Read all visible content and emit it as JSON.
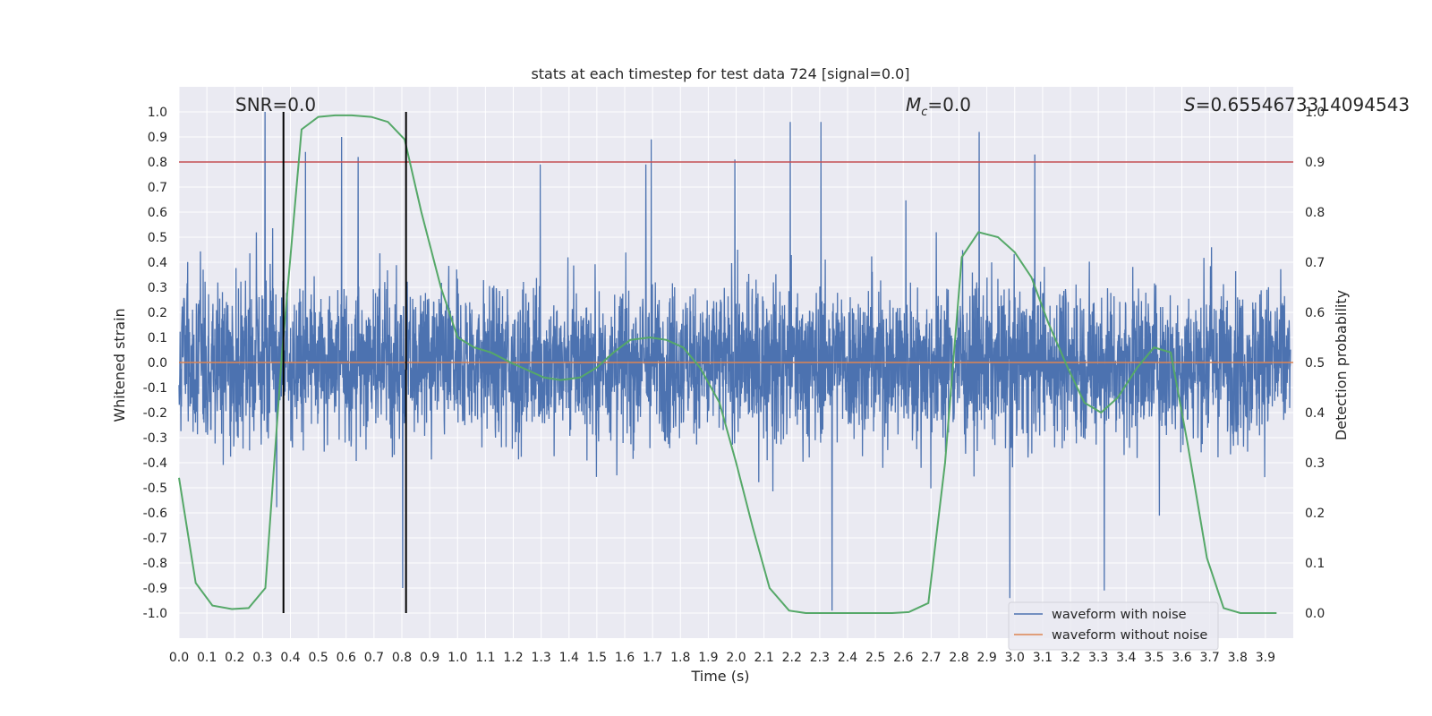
{
  "chart_data": {
    "type": "line",
    "title": "stats at each timestep for test data 724 [signal=0.0]",
    "xlabel": "Time (s)",
    "ylabel": "Whitened strain",
    "y2label": "Detection probability",
    "xlim": [
      0.0,
      4.0
    ],
    "ylim": [
      -1.1,
      1.1
    ],
    "y2lim": [
      -0.05,
      1.05
    ],
    "grid": true,
    "x_ticks": [
      "0.0",
      "0.1",
      "0.2",
      "0.3",
      "0.4",
      "0.5",
      "0.6",
      "0.7",
      "0.8",
      "0.9",
      "1.0",
      "1.1",
      "1.2",
      "1.3",
      "1.4",
      "1.5",
      "1.6",
      "1.7",
      "1.8",
      "1.9",
      "2.0",
      "2.1",
      "2.2",
      "2.3",
      "2.4",
      "2.5",
      "2.6",
      "2.7",
      "2.8",
      "2.9",
      "3.0",
      "3.1",
      "3.2",
      "3.3",
      "3.4",
      "3.5",
      "3.6",
      "3.7",
      "3.8",
      "3.9"
    ],
    "y_ticks": [
      "1.0",
      "0.9",
      "0.8",
      "0.7",
      "0.6",
      "0.5",
      "0.4",
      "0.3",
      "0.2",
      "0.1",
      "0.0",
      "-0.1",
      "-0.2",
      "-0.3",
      "-0.4",
      "-0.5",
      "-0.6",
      "-0.7",
      "-0.8",
      "-0.9",
      "-1.0"
    ],
    "y2_ticks": [
      "1.0",
      "0.9",
      "0.8",
      "0.7",
      "0.6",
      "0.5",
      "0.4",
      "0.3",
      "0.2",
      "0.1",
      "0.0"
    ],
    "annotations": {
      "snr": "SNR=0.0",
      "mc_symbol": "M",
      "mc_sub": "c",
      "mc_value": "=0.0",
      "s_symbol": "S",
      "s_value": "=0.6554673314094543"
    },
    "threshold": {
      "axis": "y2",
      "value": 0.9,
      "color": "#c44e52"
    },
    "vertical_markers": [
      0.375,
      0.815
    ],
    "marker_range_y2": [
      0.0,
      1.0
    ],
    "series": [
      {
        "name": "waveform with noise",
        "axis": "y",
        "color": "#4c72b0",
        "kind": "noise",
        "amplitude_typical": 0.35,
        "amplitude_max": 1.0,
        "peaks": [
          [
            0.31,
            1.0
          ],
          [
            0.455,
            0.84
          ],
          [
            0.585,
            0.9
          ],
          [
            0.645,
            0.82
          ],
          [
            1.3,
            0.79
          ],
          [
            1.68,
            0.79
          ],
          [
            1.7,
            0.89
          ],
          [
            2.0,
            0.81
          ],
          [
            2.2,
            0.96
          ],
          [
            2.31,
            0.96
          ],
          [
            2.88,
            0.92
          ],
          [
            3.08,
            0.83
          ],
          [
            0.805,
            -0.9
          ],
          [
            2.35,
            -0.99
          ],
          [
            2.99,
            -0.94
          ],
          [
            3.33,
            -0.91
          ]
        ]
      },
      {
        "name": "waveform without noise",
        "axis": "y",
        "color": "#dd8452",
        "values_constant": 0.0
      },
      {
        "name": "detection probability",
        "axis": "y2",
        "color": "#55a868",
        "x": [
          0.0,
          0.06,
          0.12,
          0.19,
          0.25,
          0.31,
          0.37,
          0.44,
          0.5,
          0.56,
          0.62,
          0.69,
          0.75,
          0.81,
          0.87,
          0.94,
          1.0,
          1.06,
          1.12,
          1.19,
          1.25,
          1.31,
          1.37,
          1.44,
          1.5,
          1.56,
          1.62,
          1.69,
          1.75,
          1.81,
          1.87,
          1.94,
          2.0,
          2.06,
          2.12,
          2.19,
          2.25,
          2.31,
          2.37,
          2.44,
          2.5,
          2.56,
          2.62,
          2.69,
          2.75,
          2.81,
          2.87,
          2.94,
          3.0,
          3.06,
          3.12,
          3.19,
          3.25,
          3.31,
          3.37,
          3.44,
          3.5,
          3.56,
          3.62,
          3.69,
          3.75,
          3.81,
          3.87,
          3.94
        ],
        "values": [
          0.27,
          0.06,
          0.015,
          0.008,
          0.01,
          0.05,
          0.52,
          0.965,
          0.99,
          0.993,
          0.993,
          0.99,
          0.98,
          0.945,
          0.8,
          0.65,
          0.55,
          0.53,
          0.52,
          0.5,
          0.485,
          0.47,
          0.465,
          0.47,
          0.49,
          0.52,
          0.545,
          0.55,
          0.545,
          0.53,
          0.49,
          0.42,
          0.3,
          0.17,
          0.05,
          0.005,
          0.0,
          0.0,
          0.0,
          0.0,
          0.0,
          0.0,
          0.002,
          0.02,
          0.3,
          0.71,
          0.76,
          0.75,
          0.72,
          0.67,
          0.58,
          0.49,
          0.42,
          0.4,
          0.43,
          0.49,
          0.53,
          0.52,
          0.34,
          0.11,
          0.01,
          0.0,
          0.0,
          0.0
        ]
      }
    ],
    "legend": {
      "placement": "lower-right",
      "entries": [
        {
          "label": "waveform with noise",
          "color": "#4c72b0"
        },
        {
          "label": "waveform without noise",
          "color": "#dd8452"
        }
      ]
    },
    "colors": {
      "axes_bg": "#eaeaf2",
      "grid": "#ffffff",
      "markers": "#000000"
    }
  }
}
